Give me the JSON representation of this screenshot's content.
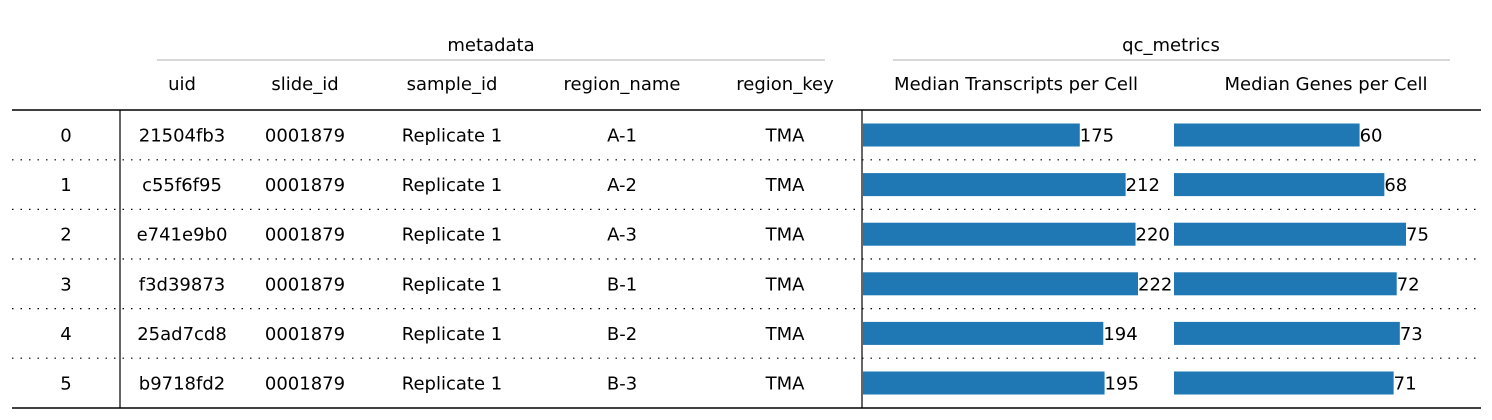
{
  "chart_data": {
    "type": "table",
    "column_groups": [
      {
        "label": "metadata"
      },
      {
        "label": "qc_metrics"
      }
    ],
    "index": [
      "0",
      "1",
      "2",
      "3",
      "4",
      "5"
    ],
    "metadata_columns": [
      "uid",
      "slide_id",
      "sample_id",
      "region_name",
      "region_key"
    ],
    "metric_columns": [
      "Median Transcripts per Cell",
      "Median Genes per Cell"
    ],
    "rows": [
      {
        "uid": "21504fb3",
        "slide_id": "0001879",
        "sample_id": "Replicate 1",
        "region_name": "A-1",
        "region_key": "TMA",
        "transcripts": 175,
        "genes": 60
      },
      {
        "uid": "c55f6f95",
        "slide_id": "0001879",
        "sample_id": "Replicate 1",
        "region_name": "A-2",
        "region_key": "TMA",
        "transcripts": 212,
        "genes": 68
      },
      {
        "uid": "e741e9b0",
        "slide_id": "0001879",
        "sample_id": "Replicate 1",
        "region_name": "A-3",
        "region_key": "TMA",
        "transcripts": 220,
        "genes": 75
      },
      {
        "uid": "f3d39873",
        "slide_id": "0001879",
        "sample_id": "Replicate 1",
        "region_name": "B-1",
        "region_key": "TMA",
        "transcripts": 222,
        "genes": 72
      },
      {
        "uid": "25ad7cd8",
        "slide_id": "0001879",
        "sample_id": "Replicate 1",
        "region_name": "B-2",
        "region_key": "TMA",
        "transcripts": 194,
        "genes": 73
      },
      {
        "uid": "b9718fd2",
        "slide_id": "0001879",
        "sample_id": "Replicate 1",
        "region_name": "B-3",
        "region_key": "TMA",
        "transcripts": 195,
        "genes": 71
      }
    ],
    "bar_color": "#1f77b4",
    "bar_scale": {
      "transcripts_max": 222,
      "genes_max": 75
    }
  }
}
